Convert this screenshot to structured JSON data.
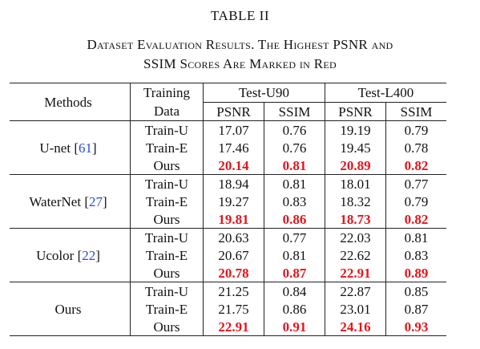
{
  "caption": {
    "label": "TABLE II",
    "title_line1": "Dataset Evaluation Results. The Highest PSNR and",
    "title_line2": "SSIM Scores Are Marked in Red"
  },
  "headers": {
    "methods": "Methods",
    "training_line1": "Training",
    "training_line2": "Data",
    "test_u90": "Test-U90",
    "test_l400": "Test-L400",
    "psnr": "PSNR",
    "ssim": "SSIM"
  },
  "groups": [
    {
      "method": "U-net",
      "cite": "61",
      "rows": [
        {
          "train": "Train-U",
          "u_psnr": "17.07",
          "u_ssim": "0.76",
          "l_psnr": "19.19",
          "l_ssim": "0.79"
        },
        {
          "train": "Train-E",
          "u_psnr": "17.46",
          "u_ssim": "0.76",
          "l_psnr": "19.45",
          "l_ssim": "0.78"
        },
        {
          "train": "Ours",
          "u_psnr": "20.14",
          "u_ssim": "0.81",
          "l_psnr": "20.89",
          "l_ssim": "0.82"
        }
      ]
    },
    {
      "method": "WaterNet",
      "cite": "27",
      "rows": [
        {
          "train": "Train-U",
          "u_psnr": "18.94",
          "u_ssim": "0.81",
          "l_psnr": "18.01",
          "l_ssim": "0.77"
        },
        {
          "train": "Train-E",
          "u_psnr": "19.27",
          "u_ssim": "0.83",
          "l_psnr": "18.32",
          "l_ssim": "0.79"
        },
        {
          "train": "Ours",
          "u_psnr": "19.81",
          "u_ssim": "0.86",
          "l_psnr": "18.73",
          "l_ssim": "0.82"
        }
      ]
    },
    {
      "method": "Ucolor",
      "cite": "22",
      "rows": [
        {
          "train": "Train-U",
          "u_psnr": "20.63",
          "u_ssim": "0.77",
          "l_psnr": "22.03",
          "l_ssim": "0.81"
        },
        {
          "train": "Train-E",
          "u_psnr": "20.67",
          "u_ssim": "0.81",
          "l_psnr": "22.62",
          "l_ssim": "0.83"
        },
        {
          "train": "Ours",
          "u_psnr": "20.78",
          "u_ssim": "0.87",
          "l_psnr": "22.91",
          "l_ssim": "0.89"
        }
      ]
    },
    {
      "method": "Ours",
      "cite": "",
      "rows": [
        {
          "train": "Train-U",
          "u_psnr": "21.25",
          "u_ssim": "0.84",
          "l_psnr": "22.87",
          "l_ssim": "0.85"
        },
        {
          "train": "Train-E",
          "u_psnr": "21.75",
          "u_ssim": "0.86",
          "l_psnr": "23.01",
          "l_ssim": "0.87"
        },
        {
          "train": "Ours",
          "u_psnr": "22.91",
          "u_ssim": "0.91",
          "l_psnr": "24.16",
          "l_ssim": "0.93"
        }
      ]
    }
  ],
  "colors": {
    "highlight": "#e8141b",
    "citation": "#2a4bd6"
  }
}
